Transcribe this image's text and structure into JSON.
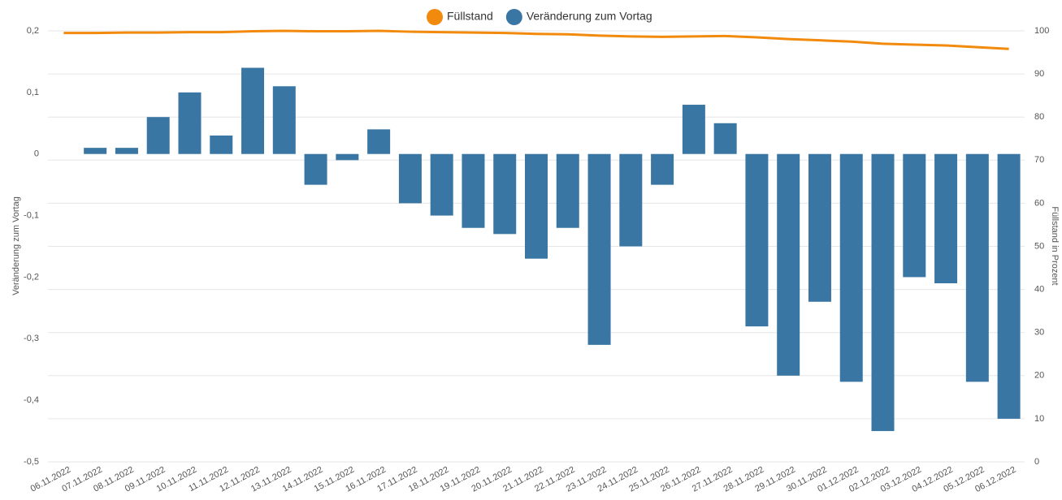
{
  "chart_data": {
    "type": "bar",
    "categories": [
      "06.11.2022",
      "07.11.2022",
      "08.11.2022",
      "09.11.2022",
      "10.11.2022",
      "11.11.2022",
      "12.11.2022",
      "13.11.2022",
      "14.11.2022",
      "15.11.2022",
      "16.11.2022",
      "17.11.2022",
      "18.11.2022",
      "19.11.2022",
      "20.11.2022",
      "21.11.2022",
      "22.11.2022",
      "23.11.2022",
      "24.11.2022",
      "25.11.2022",
      "26.11.2022",
      "27.11.2022",
      "28.11.2022",
      "29.11.2022",
      "30.11.2022",
      "01.12.2022",
      "02.12.2022",
      "03.12.2022",
      "04.12.2022",
      "05.12.2022",
      "06.12.2022"
    ],
    "series": [
      {
        "name": "Füllstand",
        "color": "#f28a0e",
        "type": "line",
        "axis": "y2",
        "values": [
          99.5,
          99.5,
          99.6,
          99.6,
          99.7,
          99.7,
          99.9,
          100,
          99.9,
          99.9,
          100,
          99.8,
          99.7,
          99.6,
          99.5,
          99.3,
          99.2,
          98.9,
          98.7,
          98.6,
          98.7,
          98.8,
          98.5,
          98.1,
          97.8,
          97.5,
          97.0,
          96.8,
          96.6,
          96.2,
          95.8
        ]
      },
      {
        "name": "Veränderung zum Vortag",
        "color": "#3a76a3",
        "type": "bar",
        "values": [
          null,
          0.01,
          0.01,
          0.06,
          0.1,
          0.03,
          0.14,
          0.11,
          -0.05,
          -0.01,
          0.04,
          -0.08,
          -0.1,
          -0.12,
          -0.13,
          -0.17,
          -0.12,
          -0.31,
          -0.15,
          -0.05,
          0.08,
          0.05,
          -0.28,
          -0.36,
          -0.24,
          -0.37,
          -0.45,
          -0.2,
          -0.21,
          -0.37,
          -0.43
        ]
      }
    ],
    "y_label": "Veränderung zum Vortag",
    "y2_label": "Füllstand in Prozent",
    "ylim": [
      -0.5,
      0.2
    ],
    "yticks": [
      {
        "value": 0.2,
        "label": "0,2"
      },
      {
        "value": 0.1,
        "label": "0,1"
      },
      0,
      {
        "value": -0.1,
        "label": "-0,1"
      },
      {
        "value": -0.2,
        "label": "-0,2"
      },
      {
        "value": -0.3,
        "label": "-0,3"
      },
      {
        "value": -0.4,
        "label": "-0,4"
      },
      {
        "value": -0.5,
        "label": "-0,5"
      }
    ],
    "y2lim": [
      0,
      100
    ],
    "y2ticks": [
      0,
      10,
      20,
      30,
      40,
      50,
      60,
      70,
      80,
      90,
      100
    ],
    "grid": true,
    "legend": "top"
  }
}
